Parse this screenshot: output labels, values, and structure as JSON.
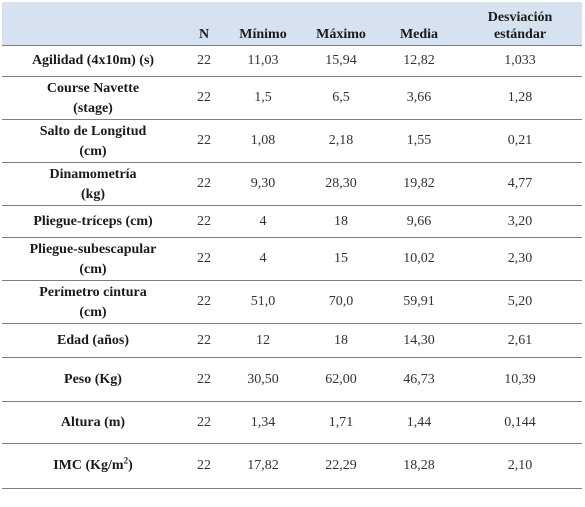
{
  "table": {
    "headers": {
      "label": "",
      "n": "N",
      "min": "Mínimo",
      "max": "Máximo",
      "mean": "Media",
      "sd_line1": "Desviación",
      "sd_line2": "estándar"
    },
    "rows": [
      {
        "label1": "Agilidad (4x10m) (s)",
        "label2": "",
        "n": "22",
        "min": "11,03",
        "max": "15,94",
        "mean": "12,82",
        "sd": "1,033"
      },
      {
        "label1": "Course Navette",
        "label2": "(stage)",
        "n": "22",
        "min": "1,5",
        "max": "6,5",
        "mean": "3,66",
        "sd": "1,28"
      },
      {
        "label1": "Salto de Longitud",
        "label2": "(cm)",
        "n": "22",
        "min": "1,08",
        "max": "2,18",
        "mean": "1,55",
        "sd": "0,21"
      },
      {
        "label1": "Dinamometría",
        "label2": "(kg)",
        "n": "22",
        "min": "9,30",
        "max": "28,30",
        "mean": "19,82",
        "sd": "4,77"
      },
      {
        "label1": "Pliegue-tríceps (cm)",
        "label2": "",
        "n": "22",
        "min": "4",
        "max": "18",
        "mean": "9,66",
        "sd": "3,20"
      },
      {
        "label1": "Pliegue-subescapular",
        "label2": "(cm)",
        "n": "22",
        "min": "4",
        "max": "15",
        "mean": "10,02",
        "sd": "2,30"
      },
      {
        "label1": "Perímetro cintura",
        "label2": "(cm)",
        "n": "22",
        "min": "51,0",
        "max": "70,0",
        "mean": "59,91",
        "sd": "5,20"
      },
      {
        "label1": "Edad (años)",
        "label2": "",
        "n": "22",
        "min": "12",
        "max": "18",
        "mean": "14,30",
        "sd": "2,61"
      },
      {
        "label1": "Peso (Kg)",
        "label2": "",
        "n": "22",
        "min": "30,50",
        "max": "62,00",
        "mean": "46,73",
        "sd": "10,39"
      },
      {
        "label1": "Altura (m)",
        "label2": "",
        "n": "22",
        "min": "1,34",
        "max": "1,71",
        "mean": "1,44",
        "sd": "0,144"
      },
      {
        "label1": "IMC (Kg/m",
        "label1_sup": "2",
        "label1_tail": ")",
        "label2": "",
        "n": "22",
        "min": "17,82",
        "max": "22,29",
        "mean": "18,28",
        "sd": "2,10"
      }
    ]
  }
}
